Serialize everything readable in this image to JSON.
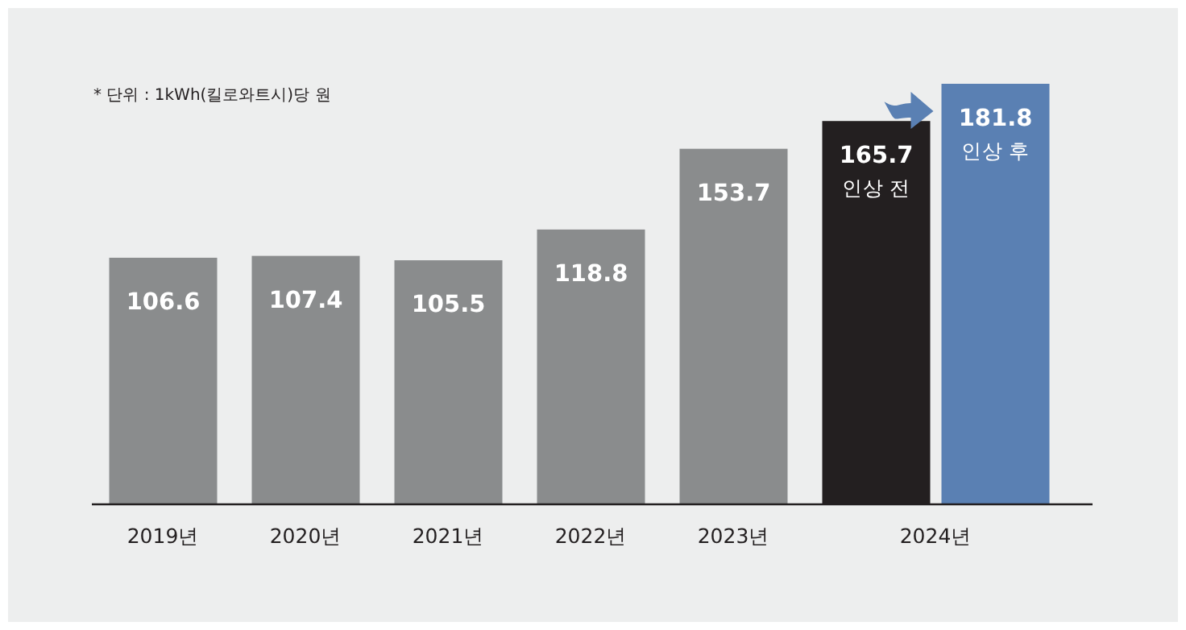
{
  "chart_data": {
    "type": "bar",
    "categories": [
      "2019년",
      "2020년",
      "2021년",
      "2022년",
      "2023년",
      "2024년"
    ],
    "series": [
      {
        "color": "#8a8c8d",
        "values": [
          106.6,
          107.4,
          105.5,
          118.8,
          153.7,
          null
        ]
      },
      {
        "name": "인상 전",
        "color": "#231f20",
        "values": [
          null,
          null,
          null,
          null,
          null,
          165.7
        ]
      },
      {
        "name": "인상 후",
        "color": "#5a80b3",
        "values": [
          null,
          null,
          null,
          null,
          null,
          181.8
        ]
      }
    ],
    "data_labels": true,
    "annotations": [
      "* 단위 : 1kWh(킬로와트시)당 원"
    ]
  }
}
